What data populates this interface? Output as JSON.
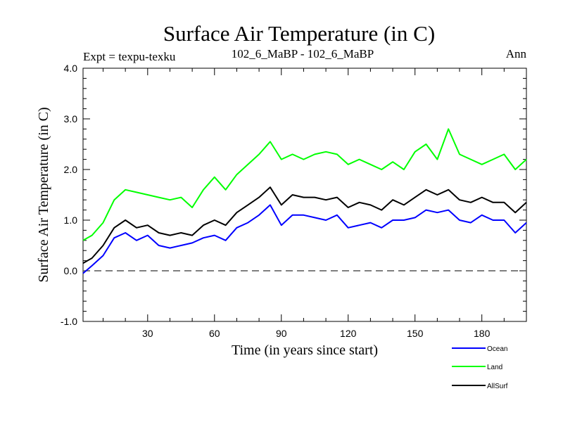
{
  "header": {
    "title": "Surface Air Temperature (in C)",
    "expt_label": "Expt = texpu-texku",
    "run_label": "102_6_MaBP - 102_6_MaBP",
    "season_label": "Ann"
  },
  "chart_data": {
    "type": "line",
    "title": "Surface Air Temperature (in C)",
    "xlabel": "Time (in years since start)",
    "ylabel": "Surface Air Temperature (in C)",
    "xlim": [
      1,
      200
    ],
    "ylim": [
      -1.0,
      4.0
    ],
    "x_ticks": [
      30,
      60,
      90,
      120,
      150,
      180
    ],
    "x_tick_labels": [
      "30",
      "60",
      "90",
      "120",
      "150",
      "180"
    ],
    "y_ticks": [
      -1.0,
      0.0,
      1.0,
      2.0,
      3.0,
      4.0
    ],
    "y_tick_labels": [
      "-1.0",
      "0.0",
      "1.0",
      "2.0",
      "3.0",
      "4.0"
    ],
    "reference_line": {
      "y": 0.0,
      "style": "dashed"
    },
    "legend_position": "bottom-right, below plot",
    "x_interval_years": 5,
    "x": [
      1,
      5,
      10,
      15,
      20,
      25,
      30,
      35,
      40,
      45,
      50,
      55,
      60,
      65,
      70,
      75,
      80,
      85,
      90,
      95,
      100,
      105,
      110,
      115,
      120,
      125,
      130,
      135,
      140,
      145,
      150,
      155,
      160,
      165,
      170,
      175,
      180,
      185,
      190,
      195,
      200
    ],
    "series": [
      {
        "name": "Ocean",
        "color": "#0000ff",
        "values": [
          -0.05,
          0.1,
          0.3,
          0.65,
          0.75,
          0.6,
          0.7,
          0.5,
          0.45,
          0.5,
          0.55,
          0.65,
          0.7,
          0.6,
          0.85,
          0.95,
          1.1,
          1.3,
          0.9,
          1.1,
          1.1,
          1.05,
          1.0,
          1.1,
          0.85,
          0.9,
          0.95,
          0.85,
          1.0,
          1.0,
          1.05,
          1.2,
          1.15,
          1.2,
          1.0,
          0.95,
          1.1,
          1.0,
          1.0,
          0.75,
          0.95
        ]
      },
      {
        "name": "Land",
        "color": "#00ff00",
        "values": [
          0.6,
          0.7,
          0.95,
          1.4,
          1.6,
          1.55,
          1.5,
          1.45,
          1.4,
          1.45,
          1.25,
          1.6,
          1.85,
          1.6,
          1.9,
          2.1,
          2.3,
          2.55,
          2.2,
          2.3,
          2.2,
          2.3,
          2.35,
          2.3,
          2.1,
          2.2,
          2.1,
          2.0,
          2.15,
          2.0,
          2.35,
          2.5,
          2.2,
          2.8,
          2.3,
          2.2,
          2.1,
          2.2,
          2.3,
          2.0,
          2.2
        ]
      },
      {
        "name": "AllSurf",
        "color": "#000000",
        "values": [
          0.15,
          0.25,
          0.5,
          0.85,
          1.0,
          0.85,
          0.9,
          0.75,
          0.7,
          0.75,
          0.7,
          0.9,
          1.0,
          0.9,
          1.15,
          1.3,
          1.45,
          1.65,
          1.3,
          1.5,
          1.45,
          1.45,
          1.4,
          1.45,
          1.25,
          1.35,
          1.3,
          1.2,
          1.4,
          1.3,
          1.45,
          1.6,
          1.5,
          1.6,
          1.4,
          1.35,
          1.45,
          1.35,
          1.35,
          1.15,
          1.35
        ]
      }
    ]
  }
}
